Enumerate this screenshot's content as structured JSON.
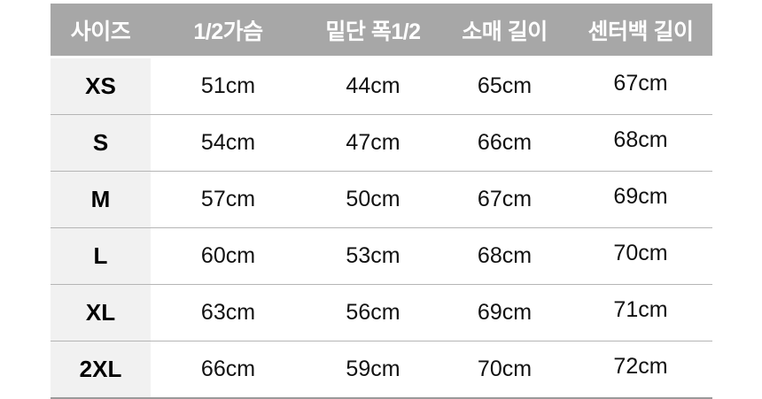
{
  "chart_data": {
    "type": "table",
    "columns": [
      "사이즈",
      "1/2가슴",
      "밑단 폭1/2",
      "소매 길이",
      "센터백 길이"
    ],
    "rows": [
      {
        "size": "XS",
        "values": [
          "51cm",
          "44cm",
          "65cm",
          "67cm"
        ]
      },
      {
        "size": "S",
        "values": [
          "54cm",
          "47cm",
          "66cm",
          "68cm"
        ]
      },
      {
        "size": "M",
        "values": [
          "57cm",
          "50cm",
          "67cm",
          "69cm"
        ]
      },
      {
        "size": "L",
        "values": [
          "60cm",
          "53cm",
          "68cm",
          "70cm"
        ]
      },
      {
        "size": "XL",
        "values": [
          "63cm",
          "56cm",
          "69cm",
          "71cm"
        ]
      },
      {
        "size": "2XL",
        "values": [
          "66cm",
          "59cm",
          "70cm",
          "72cm"
        ]
      }
    ],
    "unit": "cm"
  },
  "colors": {
    "header_bg": "#a7a7a7",
    "header_text": "#ffffff",
    "size_column_bg": "#f1f1f1",
    "row_divider": "#b5b5b5",
    "bottom_border": "#9a9a9a",
    "body_text": "#111111",
    "page_bg": "#ffffff"
  }
}
